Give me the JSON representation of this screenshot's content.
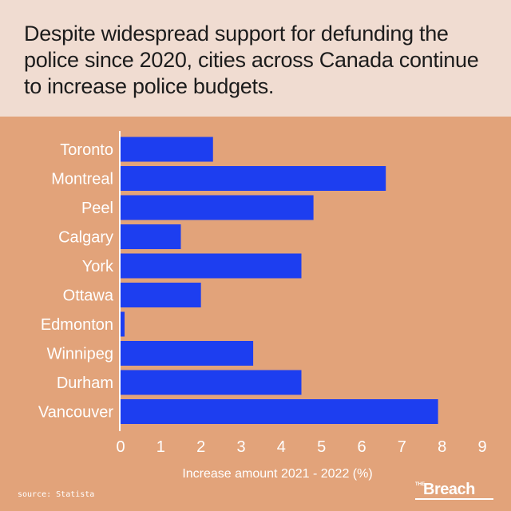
{
  "header": {
    "title": "Despite widespread support for defunding the police since 2020, cities across Canada continue to increase police budgets."
  },
  "chart_data": {
    "type": "bar",
    "orientation": "horizontal",
    "title": "Despite widespread support for defunding the police since 2020, cities across Canada continue to increase police budgets.",
    "categories": [
      "Toronto",
      "Montreal",
      "Peel",
      "Calgary",
      "York",
      "Ottawa",
      "Edmonton",
      "Winnipeg",
      "Durham",
      "Vancouver"
    ],
    "values": [
      2.3,
      6.6,
      4.8,
      1.5,
      4.5,
      2.0,
      0.1,
      3.3,
      4.5,
      7.9
    ],
    "xlabel": "Increase amount 2021 - 2022 (%)",
    "ylabel": "",
    "xlim": [
      0,
      9
    ],
    "xticks": [
      "0",
      "1",
      "2",
      "3",
      "4",
      "5",
      "6",
      "7",
      "8",
      "9"
    ],
    "grid": false,
    "bar_color": "#1d3ef0",
    "background_color": "#e2a37a",
    "header_color": "#f0dcd1"
  },
  "footer": {
    "source": "source: Statista",
    "logo_small": "THE",
    "logo_text": "Breach"
  }
}
